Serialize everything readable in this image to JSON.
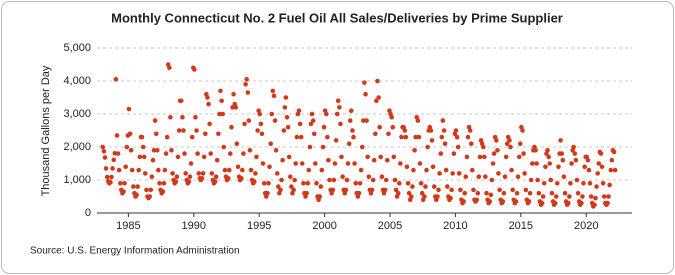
{
  "chart_data": {
    "type": "scatter",
    "title": "Monthly Connecticut No. 2 Fuel Oil All Sales/Deliveries by Prime Supplier",
    "y_label": "Thousand Gallons per Day",
    "source": "Source: U.S. Energy Information Administration",
    "color": "#d03a1a",
    "grid": true,
    "xlim": [
      1982.6,
      2023.5
    ],
    "xticks": [
      1985,
      1990,
      1995,
      2000,
      2005,
      2010,
      2015,
      2020
    ],
    "ylim": [
      0,
      5000
    ],
    "yticks": [
      0,
      {
        "value": 1000,
        "label": "1,000"
      },
      {
        "value": 2000,
        "label": "2,000"
      },
      {
        "value": 3000,
        "label": "3,000"
      },
      {
        "value": 4000,
        "label": "4,000"
      },
      {
        "value": 5000,
        "label": "5,000"
      }
    ],
    "x": [
      1983.04,
      1983.13,
      1983.21,
      1983.29,
      1983.38,
      1983.46,
      1983.54,
      1983.63,
      1983.71,
      1983.79,
      1983.88,
      1983.96,
      1984.04,
      1984.13,
      1984.21,
      1984.29,
      1984.38,
      1984.46,
      1984.54,
      1984.63,
      1984.71,
      1984.79,
      1984.88,
      1984.96,
      1985.04,
      1985.13,
      1985.21,
      1985.29,
      1985.38,
      1985.46,
      1985.54,
      1985.63,
      1985.71,
      1985.79,
      1985.88,
      1985.96,
      1986.04,
      1986.13,
      1986.21,
      1986.29,
      1986.38,
      1986.46,
      1986.54,
      1986.63,
      1986.71,
      1986.79,
      1986.88,
      1986.96,
      1987.04,
      1987.13,
      1987.21,
      1987.29,
      1987.38,
      1987.46,
      1987.54,
      1987.63,
      1987.71,
      1987.79,
      1987.88,
      1987.96,
      1988.04,
      1988.13,
      1988.21,
      1988.29,
      1988.38,
      1988.46,
      1988.54,
      1988.63,
      1988.71,
      1988.79,
      1988.88,
      1988.96,
      1989.04,
      1989.13,
      1989.21,
      1989.29,
      1989.38,
      1989.46,
      1989.54,
      1989.63,
      1989.71,
      1989.79,
      1989.88,
      1989.96,
      1990.04,
      1990.13,
      1990.21,
      1990.29,
      1990.38,
      1990.46,
      1990.54,
      1990.63,
      1990.71,
      1990.79,
      1990.88,
      1990.96,
      1991.04,
      1991.13,
      1991.21,
      1991.29,
      1991.38,
      1991.46,
      1991.54,
      1991.63,
      1991.71,
      1991.79,
      1991.88,
      1991.96,
      1992.04,
      1992.13,
      1992.21,
      1992.29,
      1992.38,
      1992.46,
      1992.54,
      1992.63,
      1992.71,
      1992.79,
      1992.88,
      1992.96,
      1993.04,
      1993.13,
      1993.21,
      1993.29,
      1993.38,
      1993.46,
      1993.54,
      1993.63,
      1993.71,
      1993.79,
      1993.88,
      1993.96,
      1994.04,
      1994.13,
      1994.21,
      1994.29,
      1994.38,
      1994.46,
      1994.54,
      1994.63,
      1994.71,
      1994.79,
      1994.88,
      1994.96,
      1995.04,
      1995.13,
      1995.21,
      1995.29,
      1995.38,
      1995.46,
      1995.54,
      1995.63,
      1995.71,
      1995.79,
      1995.88,
      1995.96,
      1996.04,
      1996.13,
      1996.21,
      1996.29,
      1996.38,
      1996.46,
      1996.54,
      1996.63,
      1996.71,
      1996.79,
      1996.88,
      1996.96,
      1997.04,
      1997.13,
      1997.21,
      1997.29,
      1997.38,
      1997.46,
      1997.54,
      1997.63,
      1997.71,
      1997.79,
      1997.88,
      1997.96,
      1998.04,
      1998.13,
      1998.21,
      1998.29,
      1998.38,
      1998.46,
      1998.54,
      1998.63,
      1998.71,
      1998.79,
      1998.88,
      1998.96,
      1999.04,
      1999.13,
      1999.21,
      1999.29,
      1999.38,
      1999.46,
      1999.54,
      1999.63,
      1999.71,
      1999.79,
      1999.88,
      1999.96,
      2000.04,
      2000.13,
      2000.21,
      2000.29,
      2000.38,
      2000.46,
      2000.54,
      2000.63,
      2000.71,
      2000.79,
      2000.88,
      2000.96,
      2001.04,
      2001.13,
      2001.21,
      2001.29,
      2001.38,
      2001.46,
      2001.54,
      2001.63,
      2001.71,
      2001.79,
      2001.88,
      2001.96,
      2002.04,
      2002.13,
      2002.21,
      2002.29,
      2002.38,
      2002.46,
      2002.54,
      2002.63,
      2002.71,
      2002.79,
      2002.88,
      2002.96,
      2003.04,
      2003.13,
      2003.21,
      2003.29,
      2003.38,
      2003.46,
      2003.54,
      2003.63,
      2003.71,
      2003.79,
      2003.88,
      2003.96,
      2004.04,
      2004.13,
      2004.21,
      2004.29,
      2004.38,
      2004.46,
      2004.54,
      2004.63,
      2004.71,
      2004.79,
      2004.88,
      2004.96,
      2005.04,
      2005.13,
      2005.21,
      2005.29,
      2005.38,
      2005.46,
      2005.54,
      2005.63,
      2005.71,
      2005.79,
      2005.88,
      2005.96,
      2006.04,
      2006.13,
      2006.21,
      2006.29,
      2006.38,
      2006.46,
      2006.54,
      2006.63,
      2006.71,
      2006.79,
      2006.88,
      2006.96,
      2007.04,
      2007.13,
      2007.21,
      2007.29,
      2007.38,
      2007.46,
      2007.54,
      2007.63,
      2007.71,
      2007.79,
      2007.88,
      2007.96,
      2008.04,
      2008.13,
      2008.21,
      2008.29,
      2008.38,
      2008.46,
      2008.54,
      2008.63,
      2008.71,
      2008.79,
      2008.88,
      2008.96,
      2009.04,
      2009.13,
      2009.21,
      2009.29,
      2009.38,
      2009.46,
      2009.54,
      2009.63,
      2009.71,
      2009.79,
      2009.88,
      2009.96,
      2010.04,
      2010.13,
      2010.21,
      2010.29,
      2010.38,
      2010.46,
      2010.54,
      2010.63,
      2010.71,
      2010.79,
      2010.88,
      2010.96,
      2011.04,
      2011.13,
      2011.21,
      2011.29,
      2011.38,
      2011.46,
      2011.54,
      2011.63,
      2011.71,
      2011.79,
      2011.88,
      2011.96,
      2012.04,
      2012.13,
      2012.21,
      2012.29,
      2012.38,
      2012.46,
      2012.54,
      2012.63,
      2012.71,
      2012.79,
      2012.88,
      2012.96,
      2013.04,
      2013.13,
      2013.21,
      2013.29,
      2013.38,
      2013.46,
      2013.54,
      2013.63,
      2013.71,
      2013.79,
      2013.88,
      2013.96,
      2014.04,
      2014.13,
      2014.21,
      2014.29,
      2014.38,
      2014.46,
      2014.54,
      2014.63,
      2014.71,
      2014.79,
      2014.88,
      2014.96,
      2015.04,
      2015.13,
      2015.21,
      2015.29,
      2015.38,
      2015.46,
      2015.54,
      2015.63,
      2015.71,
      2015.79,
      2015.88,
      2015.96,
      2016.04,
      2016.13,
      2016.21,
      2016.29,
      2016.38,
      2016.46,
      2016.54,
      2016.63,
      2016.71,
      2016.79,
      2016.88,
      2016.96,
      2017.04,
      2017.13,
      2017.21,
      2017.29,
      2017.38,
      2017.46,
      2017.54,
      2017.63,
      2017.71,
      2017.79,
      2017.88,
      2017.96,
      2018.04,
      2018.13,
      2018.21,
      2018.29,
      2018.38,
      2018.46,
      2018.54,
      2018.63,
      2018.71,
      2018.79,
      2018.88,
      2018.96,
      2019.04,
      2019.13,
      2019.21,
      2019.29,
      2019.38,
      2019.46,
      2019.54,
      2019.63,
      2019.71,
      2019.79,
      2019.88,
      2019.96,
      2020.04,
      2020.13,
      2020.21,
      2020.29,
      2020.38,
      2020.46,
      2020.54,
      2020.63,
      2020.71,
      2020.79,
      2020.88,
      2020.96,
      2021.04,
      2021.13,
      2021.21,
      2021.29,
      2021.38,
      2021.46,
      2021.54,
      2021.63,
      2021.71,
      2021.79,
      2021.88,
      2021.96,
      2022.04,
      2022.13,
      2022.21
    ],
    "values": [
      2000,
      1870,
      1680,
      1350,
      1090,
      960,
      900,
      930,
      1090,
      1350,
      1610,
      1810,
      4050,
      2350,
      1800,
      1300,
      900,
      700,
      600,
      650,
      900,
      1400,
      2000,
      2350,
      3150,
      2400,
      1900,
      1300,
      800,
      600,
      500,
      550,
      800,
      1300,
      1700,
      2300,
      2300,
      2000,
      1700,
      1200,
      700,
      500,
      450,
      500,
      700,
      1100,
      1600,
      1900,
      2800,
      2400,
      1900,
      1300,
      900,
      700,
      600,
      650,
      900,
      1300,
      1800,
      2300,
      4500,
      4400,
      2900,
      1900,
      1200,
      1000,
      900,
      950,
      1100,
      1700,
      2500,
      3400,
      3400,
      2900,
      2500,
      1800,
      1200,
      1000,
      900,
      950,
      1100,
      1500,
      2300,
      4400,
      4350,
      2900,
      2500,
      1800,
      1200,
      1050,
      1000,
      1050,
      1200,
      1700,
      2400,
      3600,
      3500,
      3300,
      2700,
      1800,
      1200,
      1000,
      900,
      950,
      1100,
      1600,
      2400,
      3000,
      3700,
      3400,
      3000,
      2000,
      1300,
      1100,
      1000,
      1050,
      1300,
      1800,
      2600,
      3200,
      3600,
      3300,
      3200,
      2100,
      1400,
      1100,
      1000,
      1050,
      1300,
      1800,
      2700,
      3900,
      4050,
      3650,
      2800,
      1900,
      1300,
      1000,
      900,
      950,
      1200,
      1700,
      2500,
      3100,
      3000,
      2700,
      2400,
      1500,
      900,
      600,
      500,
      600,
      900,
      1400,
      2100,
      3000,
      3700,
      3550,
      2800,
      1900,
      1200,
      800,
      600,
      700,
      1000,
      1600,
      2500,
      3200,
      3500,
      2900,
      2600,
      1700,
      1100,
      800,
      600,
      700,
      1000,
      1500,
      2300,
      3000,
      3100,
      2700,
      2300,
      1500,
      900,
      600,
      500,
      600,
      900,
      1300,
      2000,
      2700,
      3000,
      2800,
      2400,
      1500,
      900,
      500,
      400,
      500,
      800,
      1300,
      2000,
      2600,
      3100,
      3000,
      2300,
      1600,
      1000,
      700,
      600,
      700,
      1000,
      1500,
      2200,
      3000,
      3400,
      3200,
      2700,
      1700,
      1100,
      700,
      600,
      700,
      1000,
      1500,
      2100,
      2800,
      3100,
      2500,
      2300,
      1500,
      900,
      600,
      500,
      600,
      900,
      1300,
      2000,
      2800,
      3950,
      3600,
      2800,
      1700,
      1100,
      700,
      600,
      700,
      1000,
      1600,
      2400,
      3400,
      4000,
      3500,
      2600,
      1700,
      1100,
      700,
      600,
      700,
      1000,
      1600,
      2400,
      3100,
      3000,
      2900,
      2600,
      1700,
      1000,
      700,
      500,
      600,
      900,
      1500,
      2300,
      2600,
      2600,
      2500,
      2300,
      1400,
      900,
      600,
      400,
      500,
      800,
      1300,
      1900,
      2300,
      2900,
      2800,
      2300,
      1500,
      900,
      600,
      400,
      500,
      800,
      1300,
      2000,
      2500,
      2600,
      2500,
      2200,
      1400,
      800,
      500,
      400,
      500,
      700,
      1200,
      1800,
      2300,
      2800,
      2500,
      2100,
      1300,
      800,
      500,
      400,
      450,
      700,
      1200,
      1800,
      2400,
      2500,
      2300,
      2000,
      1200,
      700,
      400,
      300,
      350,
      600,
      1100,
      1700,
      2300,
      2600,
      2500,
      2100,
      1300,
      700,
      400,
      350,
      400,
      600,
      1100,
      1700,
      2200,
      2100,
      2000,
      1700,
      1100,
      600,
      400,
      300,
      350,
      550,
      1000,
      1500,
      1800,
      2300,
      2200,
      1900,
      1200,
      700,
      400,
      300,
      350,
      600,
      1100,
      1700,
      2100,
      2300,
      2200,
      2000,
      1300,
      700,
      400,
      300,
      350,
      600,
      1100,
      1700,
      2100,
      2600,
      2500,
      1800,
      1200,
      700,
      400,
      300,
      350,
      600,
      1000,
      1500,
      1900,
      2000,
      1900,
      1500,
      1000,
      600,
      350,
      250,
      300,
      500,
      900,
      1400,
      1800,
      1900,
      1700,
      1500,
      1000,
      600,
      350,
      250,
      300,
      500,
      900,
      1400,
      1800,
      2200,
      1800,
      1600,
      1100,
      600,
      350,
      250,
      300,
      500,
      900,
      1500,
      1900,
      2000,
      1800,
      1600,
      1000,
      600,
      350,
      250,
      300,
      500,
      900,
      1400,
      1700,
      1700,
      1600,
      1300,
      900,
      500,
      300,
      200,
      250,
      450,
      800,
      1200,
      1500,
      1850,
      1800,
      1400,
      900,
      500,
      300,
      250,
      300,
      500,
      850,
      1300,
      1600,
      1900,
      1850,
      1300
    ]
  }
}
